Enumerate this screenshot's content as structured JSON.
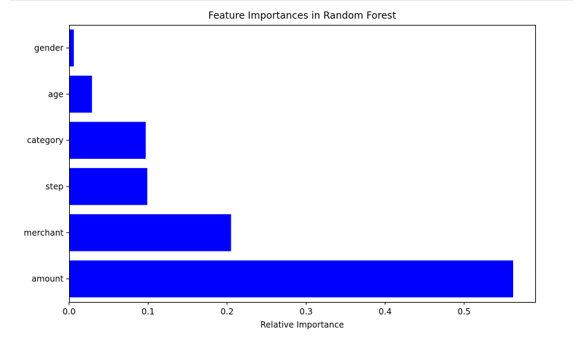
{
  "chart_data": {
    "type": "bar",
    "orientation": "horizontal",
    "title": "Feature Importances in Random Forest",
    "xlabel": "Relative Importance",
    "ylabel": "",
    "categories": [
      "amount",
      "merchant",
      "step",
      "category",
      "age",
      "gender"
    ],
    "values": [
      0.562,
      0.205,
      0.099,
      0.097,
      0.029,
      0.006
    ],
    "xlim": [
      0,
      0.59
    ],
    "xticks": [
      0.0,
      0.1,
      0.2,
      0.3,
      0.4,
      0.5
    ],
    "xtick_labels": [
      "0.0",
      "0.1",
      "0.2",
      "0.3",
      "0.4",
      "0.5"
    ],
    "bar_color": "#0000ff",
    "grid": false,
    "legend": "none"
  }
}
